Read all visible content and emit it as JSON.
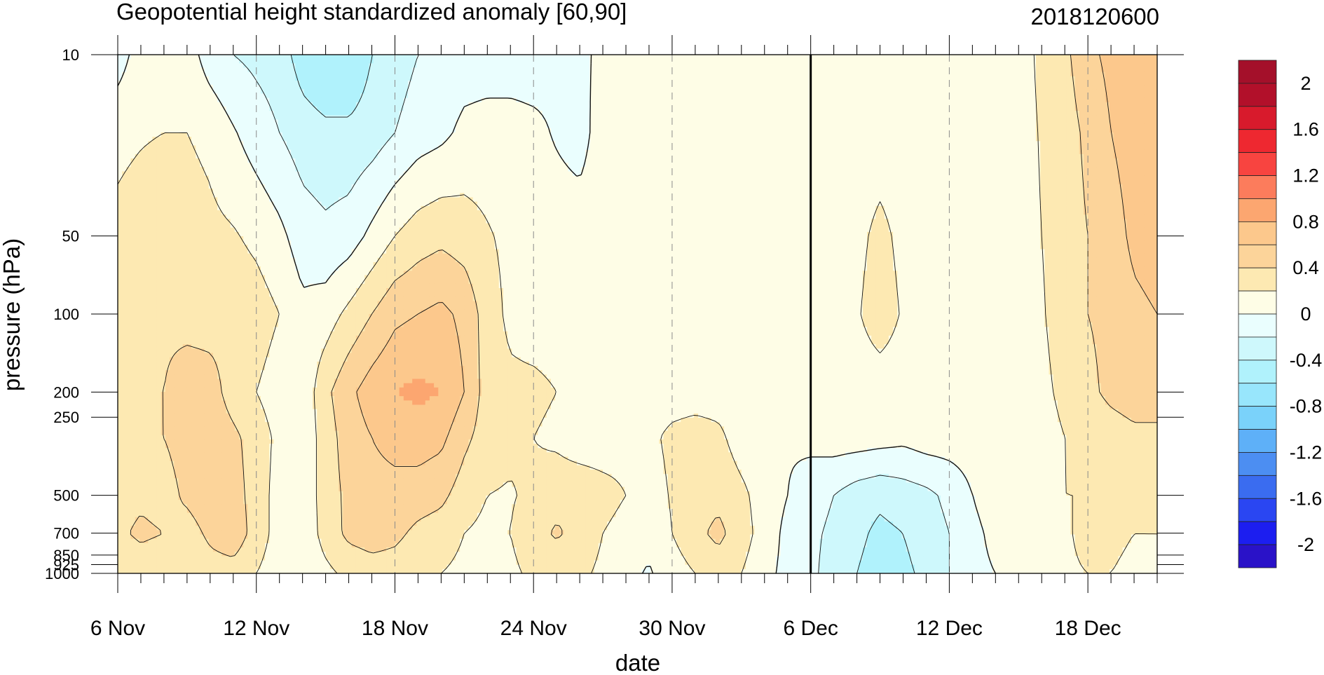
{
  "chart_data": {
    "type": "heatmap",
    "title": "Geopotential height standardized anomaly [60,90]",
    "date_label": "2018120600",
    "xlabel": "date",
    "ylabel": "pressure (hPa)",
    "x_ticks": [
      "6 Nov",
      "12 Nov",
      "18 Nov",
      "24 Nov",
      "30 Nov",
      "6 Dec",
      "12 Dec",
      "18 Dec"
    ],
    "x_tick_days": [
      0,
      6,
      12,
      18,
      24,
      30,
      36,
      42
    ],
    "x_range_days": [
      0,
      45
    ],
    "current_day": 30,
    "y_ticks": [
      10,
      50,
      100,
      200,
      250,
      500,
      700,
      850,
      925,
      1000
    ],
    "y_tick_labels": [
      "10",
      "50",
      "100",
      "200",
      "250",
      "500",
      "700",
      "850",
      "925",
      "1000"
    ],
    "y_range": [
      10,
      1000
    ],
    "colorbar": {
      "labels": [
        "2",
        "1.6",
        "1.2",
        "0.8",
        "0.4",
        "0",
        "-0.4",
        "-0.8",
        "-1.2",
        "-1.6",
        "-2"
      ],
      "levels": [
        -2.2,
        -2,
        -1.8,
        -1.6,
        -1.4,
        -1.2,
        -1,
        -0.8,
        -0.6,
        -0.4,
        -0.2,
        0,
        0.2,
        0.4,
        0.6,
        0.8,
        1,
        1.2,
        1.4,
        1.6,
        1.8,
        2,
        2.2
      ],
      "colors": [
        "#2a12c8",
        "#1c1ef0",
        "#2a46f2",
        "#3a6cf0",
        "#4c8ef2",
        "#5eb0f8",
        "#7ad2fa",
        "#98e6fc",
        "#b0f2fc",
        "#cef8fc",
        "#eafefe",
        "#fefde6",
        "#fde9b2",
        "#fcd49a",
        "#fcc88c",
        "#fca670",
        "#fc7c5c",
        "#f84440",
        "#ee2830",
        "#d81a2c",
        "#b2102a",
        "#a4102a"
      ]
    },
    "days": [
      0,
      1,
      2,
      3,
      4,
      5,
      6,
      7,
      8,
      9,
      10,
      11,
      12,
      13,
      14,
      15,
      16,
      17,
      18,
      19,
      20,
      21,
      22,
      23,
      24,
      25,
      26,
      27,
      28,
      29,
      30,
      31,
      32,
      33,
      34,
      35,
      36,
      37,
      38,
      39,
      40,
      41,
      42,
      43,
      44,
      45
    ],
    "levels_hpa": [
      10,
      20,
      50,
      100,
      200,
      300,
      500,
      700,
      1000
    ],
    "anomaly": [
      [
        -0.1,
        0.1,
        0.1,
        0.1,
        -0.1,
        -0.2,
        -0.25,
        -0.3,
        -0.5,
        -0.6,
        -0.6,
        -0.4,
        -0.3,
        -0.2,
        -0.15,
        -0.1,
        -0.1,
        -0.1,
        -0.1,
        -0.05,
        -0.05,
        0.05,
        0.1,
        0.1,
        0.1,
        0.1,
        0.1,
        0.1,
        0.1,
        0.1,
        0.1,
        0.1,
        0.1,
        0.1,
        0.1,
        0.1,
        0.1,
        0.1,
        0.1,
        0.1,
        0.25,
        0.35,
        0.55,
        0.65,
        0.7,
        0.7
      ],
      [
        0.15,
        0.18,
        0.2,
        0.2,
        0.15,
        0.02,
        -0.1,
        -0.2,
        -0.3,
        -0.35,
        -0.35,
        -0.3,
        -0.2,
        -0.1,
        -0.05,
        0.05,
        0.08,
        0.08,
        0.05,
        -0.02,
        -0.08,
        0.1,
        0.1,
        0.1,
        0.1,
        0.1,
        0.1,
        0.1,
        0.1,
        0.1,
        0.1,
        0.1,
        0.1,
        0.1,
        0.1,
        0.1,
        0.1,
        0.1,
        0.1,
        0.1,
        0.22,
        0.3,
        0.45,
        0.6,
        0.7,
        0.7
      ],
      [
        0.25,
        0.3,
        0.35,
        0.3,
        0.25,
        0.22,
        0.15,
        0.05,
        -0.1,
        -0.15,
        -0.1,
        0.05,
        0.2,
        0.3,
        0.35,
        0.3,
        0.22,
        0.15,
        0.1,
        0.1,
        0.1,
        0.1,
        0.1,
        0.1,
        0.1,
        0.1,
        0.1,
        0.1,
        0.1,
        0.1,
        0.1,
        0.1,
        0.15,
        0.25,
        0.15,
        0.1,
        0.1,
        0.1,
        0.1,
        0.1,
        0.2,
        0.3,
        0.4,
        0.5,
        0.65,
        0.7
      ],
      [
        0.3,
        0.35,
        0.35,
        0.3,
        0.3,
        0.35,
        0.3,
        0.2,
        0.05,
        0.1,
        0.25,
        0.4,
        0.55,
        0.6,
        0.65,
        0.55,
        0.3,
        0.15,
        0.1,
        0.1,
        0.1,
        0.1,
        0.1,
        0.1,
        0.1,
        0.1,
        0.1,
        0.1,
        0.1,
        0.1,
        0.1,
        0.1,
        0.18,
        0.3,
        0.18,
        0.1,
        0.1,
        0.1,
        0.1,
        0.1,
        0.18,
        0.3,
        0.4,
        0.45,
        0.55,
        0.6
      ],
      [
        0.3,
        0.35,
        0.4,
        0.55,
        0.5,
        0.3,
        0.2,
        0.1,
        0.05,
        0.35,
        0.55,
        0.7,
        0.8,
        0.85,
        0.8,
        0.6,
        0.3,
        0.25,
        0.25,
        0.2,
        0.1,
        0.1,
        0.1,
        0.1,
        0.1,
        0.1,
        0.1,
        0.1,
        0.1,
        0.1,
        0.1,
        0.1,
        0.1,
        0.1,
        0.1,
        0.1,
        0.1,
        0.1,
        0.1,
        0.1,
        0.15,
        0.25,
        0.35,
        0.45,
        0.5,
        0.5
      ],
      [
        0.3,
        0.35,
        0.4,
        0.5,
        0.55,
        0.45,
        0.3,
        0.15,
        0.05,
        0.3,
        0.5,
        0.6,
        0.65,
        0.7,
        0.65,
        0.45,
        0.3,
        0.25,
        0.2,
        0.15,
        0.05,
        0.05,
        0.1,
        0.15,
        0.25,
        0.3,
        0.25,
        0.1,
        0.05,
        0.02,
        0.05,
        0.1,
        0.1,
        0.08,
        0.05,
        0.1,
        0.1,
        0.1,
        0.1,
        0.1,
        0.12,
        0.2,
        0.25,
        0.3,
        0.35,
        0.35
      ],
      [
        0.3,
        0.35,
        0.3,
        0.45,
        0.55,
        0.5,
        0.3,
        0.12,
        0.05,
        0.3,
        0.45,
        0.55,
        0.55,
        0.5,
        0.45,
        0.3,
        0.2,
        0.18,
        0.25,
        0.35,
        0.38,
        0.3,
        0.2,
        0.1,
        0.22,
        0.3,
        0.35,
        0.25,
        0.1,
        0.0,
        -0.1,
        -0.2,
        -0.3,
        -0.35,
        -0.3,
        -0.25,
        -0.15,
        0.0,
        0.1,
        0.1,
        0.12,
        0.2,
        0.2,
        0.25,
        0.3,
        0.35
      ],
      [
        0.35,
        0.45,
        0.4,
        0.3,
        0.45,
        0.55,
        0.3,
        0.12,
        0.05,
        0.28,
        0.45,
        0.5,
        0.45,
        0.35,
        0.3,
        0.2,
        0.15,
        0.2,
        0.35,
        0.42,
        0.35,
        0.2,
        0.1,
        0.05,
        0.2,
        0.35,
        0.45,
        0.3,
        0.1,
        -0.05,
        -0.15,
        -0.25,
        -0.35,
        -0.45,
        -0.4,
        -0.3,
        -0.2,
        -0.05,
        0.05,
        0.1,
        0.1,
        0.15,
        0.3,
        0.25,
        0.2,
        0.2
      ],
      [
        0.2,
        0.25,
        0.2,
        0.2,
        0.3,
        0.3,
        0.2,
        0.1,
        0.05,
        0.15,
        0.25,
        0.3,
        0.3,
        0.25,
        0.2,
        0.15,
        0.1,
        0.15,
        0.25,
        0.3,
        0.25,
        0.15,
        0.05,
        -0.02,
        0.1,
        0.2,
        0.3,
        0.2,
        0.05,
        -0.05,
        -0.15,
        -0.3,
        -0.4,
        -0.5,
        -0.45,
        -0.35,
        -0.2,
        -0.05,
        0.0,
        0.05,
        0.1,
        0.15,
        0.2,
        0.2,
        0.15,
        0.15
      ]
    ]
  }
}
